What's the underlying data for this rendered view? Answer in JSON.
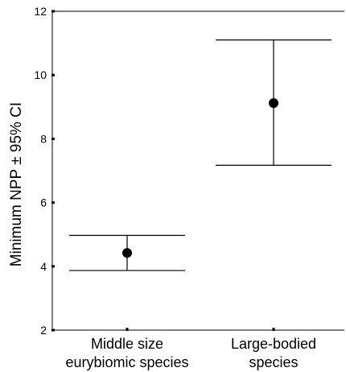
{
  "chart_data": {
    "type": "scatter",
    "title": "",
    "xlabel": "",
    "ylabel": "Minimum NPP ± 95% CI",
    "ylim": [
      2,
      12
    ],
    "yticks": [
      "2",
      "4",
      "6",
      "8",
      "10",
      "12"
    ],
    "categories": [
      [
        "Middle size",
        "eurybiomic species"
      ],
      [
        "Large-bodied",
        "species"
      ]
    ],
    "points": [
      {
        "mean": 4.42,
        "lower": 3.87,
        "upper": 4.97
      },
      {
        "mean": 9.12,
        "lower": 7.17,
        "upper": 11.1
      }
    ],
    "grid": false,
    "legend": "none",
    "colors": {
      "marker": "#000000",
      "axis": "#000000"
    }
  }
}
